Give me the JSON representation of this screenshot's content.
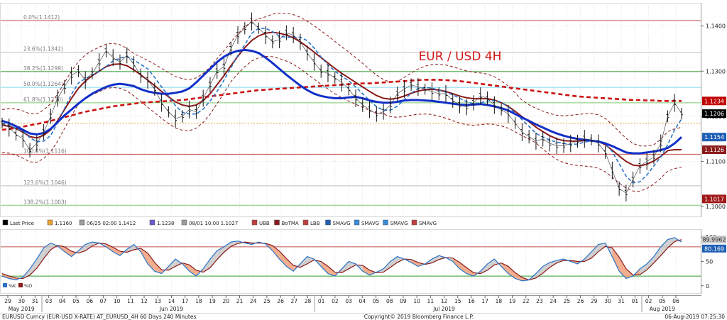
{
  "chart_data": [
    {
      "type": "line",
      "title": "EUR / USD 4H",
      "xlabel": "",
      "ylabel": "",
      "ylim": [
        1.0983,
        1.1445
      ],
      "x_ticks": [
        "29",
        "30",
        "31",
        "03",
        "04",
        "05",
        "06",
        "07",
        "10",
        "11",
        "12",
        "13",
        "14",
        "17",
        "18",
        "19",
        "20",
        "21",
        "24",
        "25",
        "26",
        "27",
        "28",
        "01",
        "02",
        "03",
        "04",
        "05",
        "08",
        "09",
        "10",
        "11",
        "12",
        "15",
        "16",
        "17",
        "18",
        "19",
        "22",
        "23",
        "24",
        "25",
        "26",
        "29",
        "30",
        "31",
        "01",
        "02",
        "05",
        "06"
      ],
      "month_labels": [
        {
          "text": "May 2019",
          "at": 1
        },
        {
          "text": "Jun 2019",
          "at": 12
        },
        {
          "text": "Jul 2019",
          "at": 32
        },
        {
          "text": "Aug 2019",
          "at": 48
        }
      ],
      "y_ticks": [
        "1.1400",
        "1.1300",
        "1.1200",
        "1.1100",
        "1.1000"
      ],
      "y_tick_values": [
        1.14,
        1.13,
        1.12,
        1.11,
        1.1
      ],
      "fib_levels": [
        {
          "label": "0.0%(1.1412)",
          "value": 1.1412,
          "color": "#c0504d"
        },
        {
          "label": "23.6%(1.1342)",
          "value": 1.1342,
          "color": "#bfbfbf"
        },
        {
          "label": "38.2%(1.1299)",
          "value": 1.1299,
          "color": "#2e9e2e"
        },
        {
          "label": "50.0%(1.1264)",
          "value": 1.1264,
          "color": "#7fd7ec"
        },
        {
          "label": "61.8%(1.1230)",
          "value": 1.123,
          "color": "#7ecb6d"
        },
        {
          "label": "",
          "value": 1.1185,
          "color": "#e89a3c"
        },
        {
          "label": "100.0%(1.1116)",
          "value": 1.1116,
          "color": "#c0504d"
        },
        {
          "label": "123.6%(1.1046)",
          "value": 1.1046,
          "color": "#bfbfbf"
        },
        {
          "label": "138.2%(1.1003)",
          "value": 1.1003,
          "color": "#7ecb6d"
        }
      ],
      "price_tags": [
        {
          "text": "1.1234",
          "value": 1.1234,
          "bg": "#c00000"
        },
        {
          "text": "1.1206",
          "value": 1.1206,
          "bg": "#000000"
        },
        {
          "text": "1.1154",
          "value": 1.1154,
          "bg": "#1f5fb4"
        },
        {
          "text": "1.1126",
          "value": 1.1126,
          "bg": "#8b1a1a"
        },
        {
          "text": "1.1017",
          "value": 1.1017,
          "bg": "#a01818"
        }
      ],
      "legend": [
        {
          "text": "Last Price",
          "color": "#000000"
        },
        {
          "text": "1.1160",
          "color": "#e8a030"
        },
        {
          "text": "06/25 02:00 1.1412",
          "color": "#9b9b9b"
        },
        {
          "text": "1.1238",
          "color": "#6a5acd"
        },
        {
          "text": "08/01 10:00 1.1027",
          "color": "#9b9b9b"
        },
        {
          "text": "UBB",
          "color": "#c04040"
        },
        {
          "text": "BoTMA",
          "color": "#8b1a1a"
        },
        {
          "text": "LBB",
          "color": "#c04040"
        },
        {
          "text": "SMAVG",
          "color": "#1f5fb4"
        },
        {
          "text": "SMAVG",
          "color": "#3a8dd8"
        },
        {
          "text": "SMAVG",
          "color": "#3a8dd8"
        },
        {
          "text": "SMAVG",
          "color": "#c04040"
        }
      ],
      "colors": {
        "price": "#111111",
        "sma_blue": "#1230c8",
        "sma_blue_dash": "#2a73c8",
        "sma_red_dash": "#cc1111",
        "mid_band": "#8b1a1a",
        "bands": "#8b1a1a"
      },
      "series": [
        {
          "values": [
            1.1185,
            1.1175,
            1.116,
            1.115,
            1.1125,
            1.114,
            1.1165,
            1.12,
            1.124,
            1.1265,
            1.129,
            1.13,
            1.128,
            1.1295,
            1.132,
            1.1345,
            1.133,
            1.132,
            1.1335,
            1.1315,
            1.129,
            1.128,
            1.126,
            1.123,
            1.121,
            1.1195,
            1.12,
            1.1215,
            1.121,
            1.124,
            1.127,
            1.13,
            1.131,
            1.135,
            1.138,
            1.1395,
            1.141,
            1.1395,
            1.138,
            1.1365,
            1.137,
            1.1385,
            1.138,
            1.1365,
            1.134,
            1.132,
            1.13,
            1.1295,
            1.1285,
            1.1275,
            1.126,
            1.124,
            1.1225,
            1.1215,
            1.1205,
            1.121,
            1.1225,
            1.125,
            1.126,
            1.127,
            1.1265,
            1.126,
            1.1255,
            1.125,
            1.125,
            1.1235,
            1.1225,
            1.122,
            1.123,
            1.1245,
            1.124,
            1.1225,
            1.1215,
            1.1205,
            1.1185,
            1.1165,
            1.1155,
            1.1145,
            1.115,
            1.114,
            1.1135,
            1.1135,
            1.114,
            1.1145,
            1.115,
            1.1148,
            1.114,
            1.112,
            1.108,
            1.104,
            1.103,
            1.106,
            1.109,
            1.11,
            1.111,
            1.114,
            1.12,
            1.123,
            1.1206
          ]
        },
        {
          "values": [
            1.119,
            1.1185,
            1.1178,
            1.117,
            1.1162,
            1.116,
            1.1163,
            1.1172,
            1.1187,
            1.1202,
            1.1215,
            1.1228,
            1.124,
            1.125,
            1.1258,
            1.1265,
            1.127,
            1.1272,
            1.127,
            1.1267,
            1.126,
            1.1255,
            1.1252,
            1.125,
            1.125,
            1.1252,
            1.1255,
            1.1262,
            1.1275,
            1.129,
            1.1305,
            1.132,
            1.1332,
            1.134,
            1.1345,
            1.1347,
            1.1345,
            1.134,
            1.133,
            1.1318,
            1.1305,
            1.1292,
            1.128,
            1.1268,
            1.1258,
            1.125,
            1.1245,
            1.1242,
            1.124,
            1.124,
            1.1242,
            1.1243,
            1.124,
            1.1235,
            1.1232,
            1.123,
            1.123,
            1.1232,
            1.1235,
            1.1236,
            1.1236,
            1.1235,
            1.1234,
            1.1232,
            1.123,
            1.1228,
            1.1226,
            1.1225,
            1.1226,
            1.1227,
            1.1225,
            1.1222,
            1.1218,
            1.1213,
            1.1205,
            1.1197,
            1.119,
            1.1182,
            1.1175,
            1.1168,
            1.1162,
            1.1157,
            1.1153,
            1.115,
            1.1148,
            1.1146,
            1.1144,
            1.114,
            1.1134,
            1.1127,
            1.112,
            1.1118,
            1.1118,
            1.112,
            1.1122,
            1.1125,
            1.113,
            1.114,
            1.1154
          ]
        },
        {
          "values": [
            1.117,
            1.1172,
            1.1174,
            1.1177,
            1.118,
            1.1183,
            1.1186,
            1.119,
            1.1194,
            1.1198,
            1.1202,
            1.1206,
            1.121,
            1.1213,
            1.1216,
            1.1219,
            1.1222,
            1.1224,
            1.1226,
            1.1228,
            1.123,
            1.1231,
            1.1232,
            1.1233,
            1.1234,
            1.1235,
            1.1236,
            1.1238,
            1.124,
            1.1242,
            1.1244,
            1.1246,
            1.1248,
            1.125,
            1.1252,
            1.1254,
            1.1256,
            1.1258,
            1.1259,
            1.126,
            1.1261,
            1.1262,
            1.1263,
            1.1264,
            1.1265,
            1.1266,
            1.1267,
            1.1268,
            1.1269,
            1.127,
            1.1271,
            1.1272,
            1.1273,
            1.1273,
            1.1274,
            1.1275,
            1.1276,
            1.1277,
            1.1278,
            1.1279,
            1.128,
            1.1281,
            1.1281,
            1.1281,
            1.128,
            1.1279,
            1.1278,
            1.1276,
            1.1274,
            1.1272,
            1.127,
            1.1268,
            1.1266,
            1.1264,
            1.1262,
            1.126,
            1.1258,
            1.1256,
            1.1254,
            1.1252,
            1.125,
            1.1248,
            1.1246,
            1.1244,
            1.1243,
            1.1242,
            1.1241,
            1.124,
            1.1239,
            1.1238,
            1.1237,
            1.1236,
            1.1236,
            1.1235,
            1.1235,
            1.1234,
            1.1234,
            1.1234,
            1.1234
          ]
        },
        {
          "values": [
            1.118,
            1.1178,
            1.1173,
            1.1165,
            1.1155,
            1.1152,
            1.1158,
            1.117,
            1.119,
            1.1215,
            1.124,
            1.1262,
            1.1278,
            1.129,
            1.13,
            1.131,
            1.1315,
            1.1316,
            1.1312,
            1.1303,
            1.1292,
            1.128,
            1.1268,
            1.1255,
            1.1243,
            1.1232,
            1.1225,
            1.1222,
            1.1225,
            1.1235,
            1.125,
            1.127,
            1.129,
            1.1312,
            1.1333,
            1.1352,
            1.1368,
            1.1378,
            1.1384,
            1.1386,
            1.1384,
            1.138,
            1.1374,
            1.1365,
            1.1354,
            1.1342,
            1.133,
            1.1318,
            1.1306,
            1.1295,
            1.1285,
            1.1275,
            1.1265,
            1.1255,
            1.1246,
            1.124,
            1.1238,
            1.124,
            1.1245,
            1.1251,
            1.1256,
            1.1259,
            1.126,
            1.1258,
            1.1255,
            1.125,
            1.1245,
            1.1241,
            1.1239,
            1.1239,
            1.1239,
            1.1236,
            1.123,
            1.1222,
            1.1211,
            1.1199,
            1.1188,
            1.1176,
            1.1166,
            1.1157,
            1.115,
            1.1146,
            1.1145,
            1.1145,
            1.1146,
            1.1146,
            1.1144,
            1.1137,
            1.1125,
            1.1112,
            1.11,
            1.1092,
            1.109,
            1.1094,
            1.1101,
            1.1111,
            1.1124,
            1.1126,
            1.1126
          ]
        }
      ]
    },
    {
      "type": "line",
      "ylim": [
        -12,
        112
      ],
      "y_ticks": [
        "100",
        "50",
        "0"
      ],
      "y_tick_values": [
        100,
        50,
        0
      ],
      "levels": [
        {
          "value": 80,
          "color": "#c0504d"
        },
        {
          "value": 20,
          "color": "#2e9e2e"
        }
      ],
      "value_tags": [
        {
          "text": "89.9962",
          "value": 89.9962,
          "bg": "#c8c8c8",
          "fg": "#333333"
        },
        {
          "text": "80.169",
          "value": 80.169,
          "bg": "#1f5fb4",
          "fg": "#ffffff"
        }
      ],
      "legend": [
        {
          "text": "%K",
          "color": "#2a73c8"
        },
        {
          "text": "%D",
          "color": "#8b1a1a"
        }
      ],
      "series": [
        {
          "values": [
            20,
            15,
            12,
            18,
            35,
            55,
            78,
            88,
            82,
            70,
            60,
            72,
            85,
            90,
            88,
            80,
            70,
            62,
            75,
            85,
            70,
            45,
            30,
            25,
            40,
            55,
            45,
            30,
            20,
            35,
            55,
            72,
            80,
            90,
            92,
            88,
            85,
            90,
            86,
            72,
            55,
            40,
            30,
            45,
            60,
            55,
            40,
            25,
            20,
            35,
            50,
            45,
            30,
            22,
            28,
            35,
            50,
            60,
            55,
            48,
            40,
            45,
            55,
            62,
            58,
            50,
            35,
            25,
            20,
            30,
            45,
            55,
            40,
            25,
            15,
            10,
            12,
            25,
            40,
            48,
            52,
            55,
            50,
            45,
            55,
            70,
            85,
            88,
            60,
            30,
            15,
            20,
            35,
            45,
            60,
            80,
            95,
            99,
            90
          ]
        },
        {
          "values": [
            25,
            20,
            16,
            15,
            22,
            36,
            56,
            74,
            83,
            80,
            71,
            67,
            72,
            82,
            88,
            86,
            79,
            71,
            69,
            74,
            77,
            67,
            48,
            33,
            32,
            40,
            47,
            43,
            32,
            28,
            37,
            54,
            69,
            81,
            87,
            90,
            88,
            88,
            87,
            83,
            71,
            56,
            42,
            38,
            45,
            53,
            50,
            40,
            28,
            27,
            35,
            43,
            42,
            32,
            27,
            28,
            38,
            48,
            55,
            54,
            48,
            44,
            47,
            54,
            58,
            57,
            48,
            37,
            27,
            25,
            32,
            43,
            47,
            40,
            27,
            17,
            12,
            16,
            26,
            38,
            47,
            52,
            52,
            50,
            50,
            57,
            70,
            81,
            78,
            59,
            35,
            22,
            23,
            33,
            47,
            62,
            78,
            91,
            95
          ]
        }
      ]
    }
  ],
  "footer": {
    "left": "EURUSD Curncy (EUR-USD X-RATE) AT_EURUSD_4H 60 Days 240 Minutes",
    "center": "Copyright© 2019 Bloomberg Finance L.P.",
    "right": "06-Aug-2019 07:25:30"
  }
}
